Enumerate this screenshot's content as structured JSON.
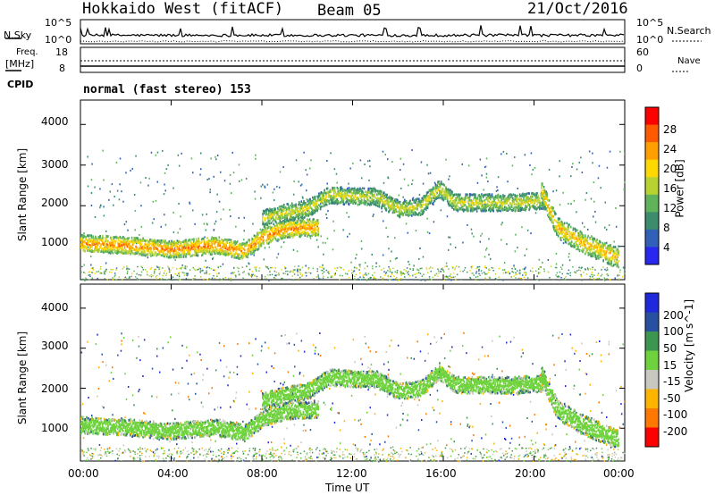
{
  "header": {
    "radar_title": "Hokkaido West (fitACF)",
    "beam_label": "Beam 05",
    "date_label": "21/Oct/2016"
  },
  "top_panel": {
    "nsky_label": "N.Sky",
    "nsky_ticks": [
      "10^5",
      "10^0"
    ],
    "nsearch_ticks": [
      "10^5",
      "10^0"
    ],
    "nsearch_label": "N.Search",
    "freq_label": "Freq.",
    "freq_unit": "[MHz]",
    "freq_ticks": [
      "18",
      "8"
    ],
    "nave_ticks": [
      "60",
      "0"
    ],
    "nave_label": "Nave",
    "cpid_label": "CPID",
    "cpid_text": "normal (fast stereo) 153"
  },
  "x_axis": {
    "title": "Time UT",
    "ticks": [
      "00:00",
      "04:00",
      "08:00",
      "12:00",
      "16:00",
      "20:00",
      "00:00"
    ]
  },
  "colors": {
    "power_scale": [
      "#2828f0",
      "#3060b8",
      "#3c8c6e",
      "#5fb45a",
      "#b8d232",
      "#ffd800",
      "#ffa000",
      "#ff5a00",
      "#ff0000"
    ],
    "velocity_scale": [
      "#ff0000",
      "#ff7800",
      "#ffb400",
      "#c8c8c0",
      "#6ed23c",
      "#3c9650",
      "#2850a0",
      "#1e28dc"
    ]
  },
  "chart_data": [
    {
      "type": "heatmap",
      "panel": "power",
      "ylabel": "Slant Range [km]",
      "y_ticks": [
        "4000",
        "3000",
        "2000",
        "1000"
      ],
      "ylim": [
        180,
        4600
      ],
      "xlim": [
        0,
        24
      ],
      "colorbar_label": "Power [dB]",
      "colorbar_ticks": [
        "28",
        "24",
        "20",
        "16",
        "12",
        "8",
        "4"
      ],
      "colorbar_range": [
        0,
        32
      ],
      "echo_bands": [
        {
          "name": "near",
          "t": [
            0,
            2,
            4,
            6,
            7.2,
            8,
            9,
            10.5
          ],
          "r": [
            1100,
            1050,
            950,
            1050,
            900,
            1250,
            1450,
            1500
          ],
          "width": 420,
          "power": 25
        },
        {
          "name": "far",
          "t": [
            8,
            9,
            10,
            11,
            12,
            13,
            14,
            15,
            15.8,
            16.5,
            18,
            19,
            20.5
          ],
          "r": [
            1700,
            1850,
            1950,
            2300,
            2250,
            2250,
            1950,
            2000,
            2450,
            2100,
            2100,
            2100,
            2150
          ],
          "width": 420,
          "power": 18
        },
        {
          "name": "late",
          "t": [
            20.3,
            21,
            22,
            23,
            23.7
          ],
          "r": [
            2400,
            1500,
            1150,
            900,
            750
          ],
          "width": 500,
          "power": 22
        }
      ]
    },
    {
      "type": "heatmap",
      "panel": "velocity",
      "ylabel": "Slant Range [km]",
      "y_ticks": [
        "4000",
        "3000",
        "2000",
        "1000"
      ],
      "ylim": [
        180,
        4600
      ],
      "xlim": [
        0,
        24
      ],
      "colorbar_label": "Velocity [m s^-1]",
      "colorbar_ticks": [
        "200",
        "100",
        "50",
        "15",
        "-15",
        "-50",
        "-100",
        "-200"
      ],
      "colorbar_range": [
        -250,
        250
      ],
      "echo_bands": [
        {
          "name": "near",
          "t": [
            0,
            2,
            4,
            6,
            7.2,
            8,
            9,
            10.5
          ],
          "r": [
            1100,
            1050,
            950,
            1050,
            900,
            1250,
            1450,
            1500
          ],
          "width": 420,
          "velocity": 0
        },
        {
          "name": "far",
          "t": [
            8,
            9,
            10,
            11,
            12,
            13,
            14,
            15,
            15.8,
            16.5,
            18,
            19,
            20.5
          ],
          "r": [
            1700,
            1850,
            1950,
            2300,
            2250,
            2250,
            1950,
            2000,
            2450,
            2100,
            2100,
            2100,
            2150
          ],
          "width": 420,
          "velocity": 0
        },
        {
          "name": "late",
          "t": [
            20.3,
            21,
            22,
            23,
            23.7
          ],
          "r": [
            2400,
            1500,
            1150,
            900,
            750
          ],
          "width": 500,
          "velocity": 0
        }
      ]
    }
  ]
}
